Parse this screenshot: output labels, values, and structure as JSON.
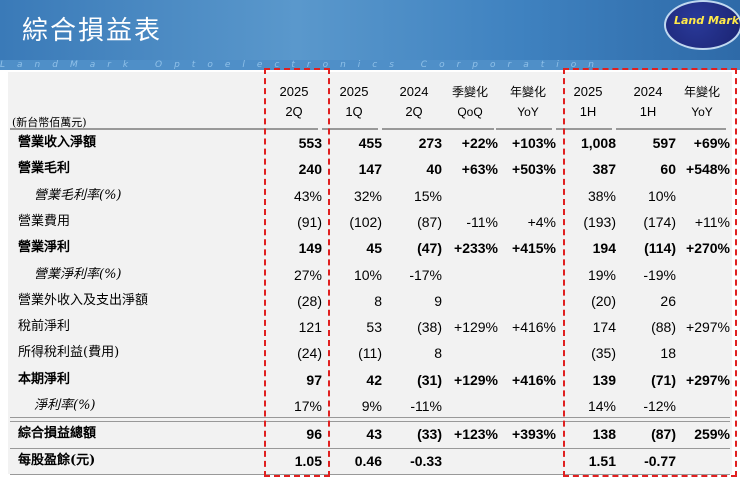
{
  "header": {
    "title": "綜合損益表",
    "strip_text": "LandMark Optoelectronics Corporation",
    "logo_text": "Land Mark Optoelectronics"
  },
  "table": {
    "unit": "(新台幣佰萬元)",
    "columns": [
      [
        "2025",
        "2Q"
      ],
      [
        "2025",
        "1Q"
      ],
      [
        "2024",
        "2Q"
      ],
      [
        "季變化",
        "QoQ"
      ],
      [
        "年變化",
        "YoY"
      ],
      [
        "2025",
        "1H"
      ],
      [
        "2024",
        "1H"
      ],
      [
        "年變化",
        "YoY"
      ]
    ],
    "highlight_color": "#e02020",
    "rows": [
      {
        "label": "營業收入淨額",
        "style": "bold",
        "values": [
          "553",
          "455",
          "273",
          "+22%",
          "+103%",
          "1,008",
          "597",
          "+69%"
        ]
      },
      {
        "label": "營業毛利",
        "style": "bold",
        "values": [
          "240",
          "147",
          "40",
          "+63%",
          "+503%",
          "387",
          "60",
          "+548%"
        ]
      },
      {
        "label": "營業毛利率(%)",
        "style": "italic",
        "values": [
          "43%",
          "32%",
          "15%",
          "",
          "",
          "38%",
          "10%",
          ""
        ]
      },
      {
        "label": "營業費用",
        "style": "normal",
        "values": [
          "(91)",
          "(102)",
          "(87)",
          "-11%",
          "+4%",
          "(193)",
          "(174)",
          "+11%"
        ]
      },
      {
        "label": "營業淨利",
        "style": "bold",
        "values": [
          "149",
          "45",
          "(47)",
          "+233%",
          "+415%",
          "194",
          "(114)",
          "+270%"
        ]
      },
      {
        "label": "營業淨利率(%)",
        "style": "italic",
        "values": [
          "27%",
          "10%",
          "-17%",
          "",
          "",
          "19%",
          "-19%",
          ""
        ]
      },
      {
        "label": "營業外收入及支出淨額",
        "style": "normal",
        "values": [
          "(28)",
          "8",
          "9",
          "",
          "",
          "(20)",
          "26",
          ""
        ]
      },
      {
        "label": "稅前淨利",
        "style": "normal",
        "values": [
          "121",
          "53",
          "(38)",
          "+129%",
          "+416%",
          "174",
          "(88)",
          "+297%"
        ]
      },
      {
        "label": "所得稅利益(費用)",
        "style": "normal",
        "values": [
          "(24)",
          "(11)",
          "8",
          "",
          "",
          "(35)",
          "18",
          ""
        ]
      },
      {
        "label": "本期淨利",
        "style": "bold",
        "values": [
          "97",
          "42",
          "(31)",
          "+129%",
          "+416%",
          "139",
          "(71)",
          "+297%"
        ]
      },
      {
        "label": "淨利率(%)",
        "style": "italic",
        "values": [
          "17%",
          "9%",
          "-11%",
          "",
          "",
          "14%",
          "-12%",
          ""
        ]
      },
      {
        "label": "綜合損益總額",
        "style": "bold",
        "values": [
          "96",
          "43",
          "(33)",
          "+123%",
          "+393%",
          "138",
          "(87)",
          "259%"
        ]
      },
      {
        "label": "每股盈餘(元)",
        "style": "bold",
        "values": [
          "1.05",
          "0.46",
          "-0.33",
          "",
          "",
          "1.51",
          "-0.77",
          ""
        ]
      }
    ]
  }
}
